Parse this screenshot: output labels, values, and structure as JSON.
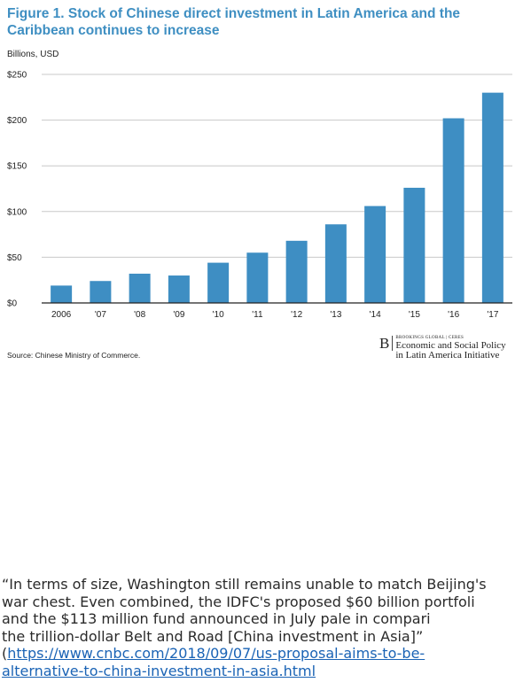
{
  "figure": {
    "title_line1": "Figure 1. Stock of Chinese direct investment in Latin America and the",
    "title_line2": "Caribbean continues to increase",
    "unit_label": "Billions, USD",
    "source": "Source: Chinese Ministry of Commerce.",
    "brand": {
      "logo_letter": "B",
      "small_line": "BROOKINGS GLOBAL | CERES",
      "line1": "Economic and Social Policy",
      "line2": "in Latin America Initiative"
    }
  },
  "chart_data": {
    "type": "bar",
    "title": "Figure 1. Stock of Chinese direct investment in Latin America and the Caribbean continues to increase",
    "ylabel": "Billions, USD",
    "categories": [
      "2006",
      "'07",
      "'08",
      "'09",
      "'10",
      "'11",
      "'12",
      "'13",
      "'14",
      "'15",
      "'16",
      "'17"
    ],
    "values": [
      19,
      24,
      32,
      30,
      44,
      55,
      68,
      86,
      106,
      126,
      202,
      230
    ],
    "ylim": [
      0,
      250
    ],
    "yticks": [
      0,
      50,
      100,
      150,
      200,
      250
    ],
    "ytick_labels": [
      "$0",
      "$50",
      "$100",
      "$150",
      "$200",
      "$250"
    ],
    "grid": true,
    "bar_color": "#3e8ec3"
  },
  "quote": {
    "line1": "“In terms of size, Washington still remains unable to match Beijing's",
    "line2": "war chest. Even combined, the IDFC's proposed $60 billion portfoli",
    "line3": "and the $113 million fund announced in July pale in compari",
    "line4": "the trillion-dollar Belt and Road [China investment in Asia]”",
    "link_prefix": "(",
    "link_line1": "https://www.cnbc.com/2018/09/07/us-proposal-aims-to-be-",
    "link_line2": "alternative-to-china-investment-in-asia.html"
  }
}
